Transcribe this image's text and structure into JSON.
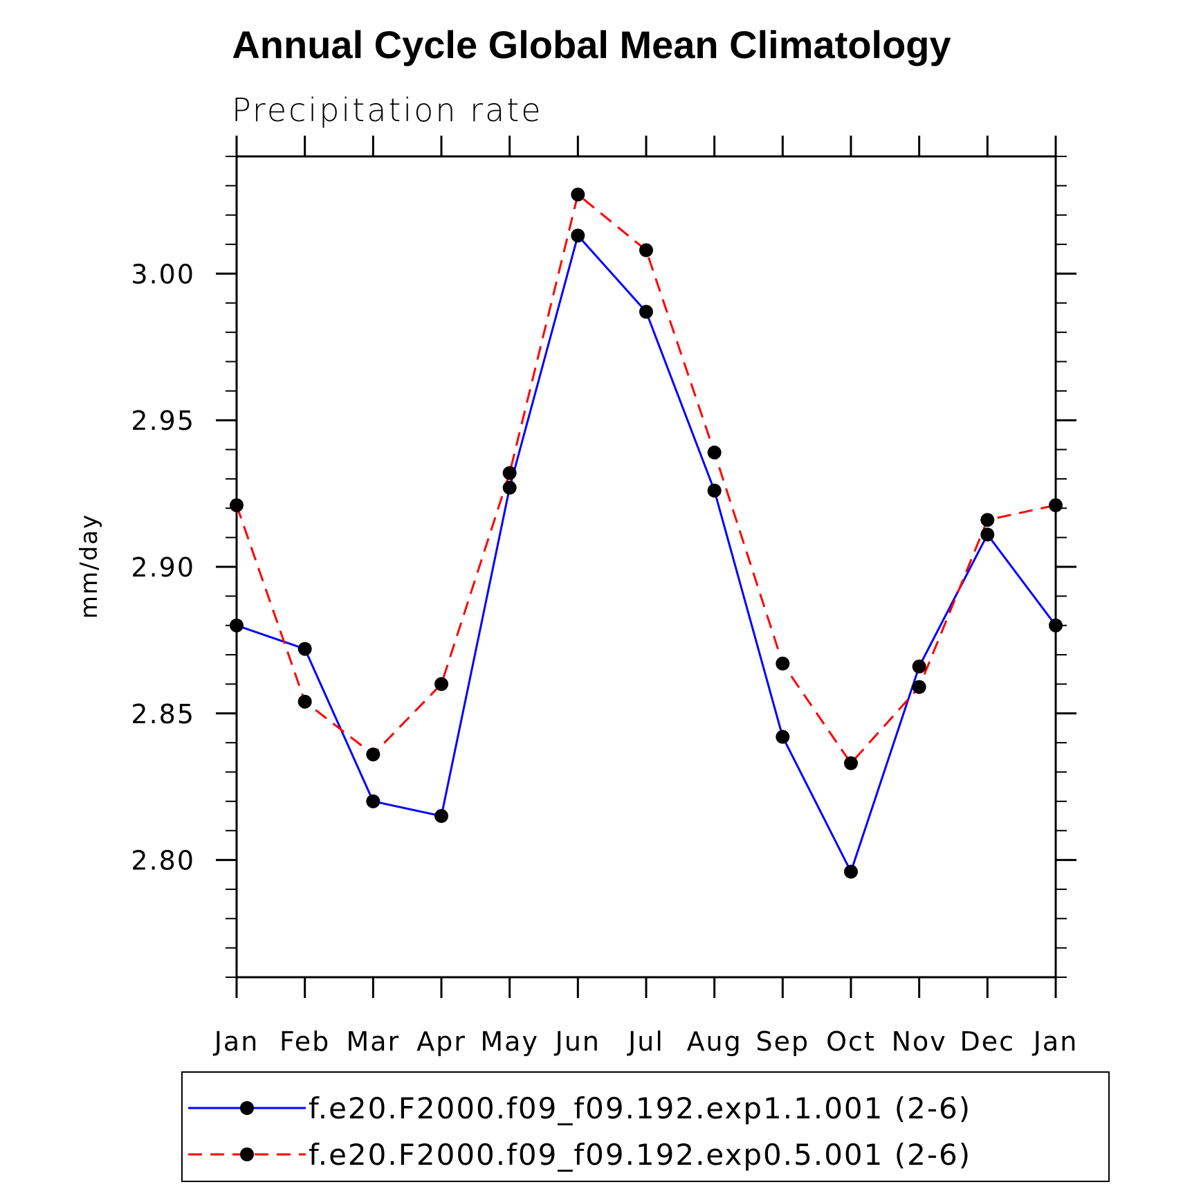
{
  "chart_data": {
    "type": "line",
    "title": "Annual Cycle Global Mean Climatology",
    "subtitle": "Precipitation rate",
    "ylabel": "mm/day",
    "xlabel": "",
    "categories": [
      "Jan",
      "Feb",
      "Mar",
      "Apr",
      "May",
      "Jun",
      "Jul",
      "Aug",
      "Sep",
      "Oct",
      "Nov",
      "Dec",
      "Jan"
    ],
    "ylim": [
      2.76,
      3.04
    ],
    "yticks": [
      2.8,
      2.85,
      2.9,
      2.95,
      3.0
    ],
    "ytick_labels": [
      "2.80",
      "2.85",
      "2.90",
      "2.95",
      "3.00"
    ],
    "y_minor_step": 0.01,
    "grid": false,
    "legend_placement": "bottom",
    "series": [
      {
        "name": "f.e20.F2000.f09_f09.192.exp1.1.001 (2-6)",
        "color": "#0000ff",
        "line_style": "solid",
        "marker": "filled-circle",
        "marker_color": "#000000",
        "values": [
          2.88,
          2.872,
          2.82,
          2.815,
          2.927,
          3.013,
          2.987,
          2.926,
          2.842,
          2.796,
          2.866,
          2.911,
          2.88
        ]
      },
      {
        "name": "f.e20.F2000.f09_f09.192.exp0.5.001 (2-6)",
        "color": "#ff0000",
        "line_style": "dashed",
        "marker": "filled-circle",
        "marker_color": "#000000",
        "values": [
          2.921,
          2.854,
          2.836,
          2.86,
          2.932,
          3.027,
          3.008,
          2.939,
          2.867,
          2.833,
          2.859,
          2.916,
          2.921
        ]
      }
    ]
  }
}
